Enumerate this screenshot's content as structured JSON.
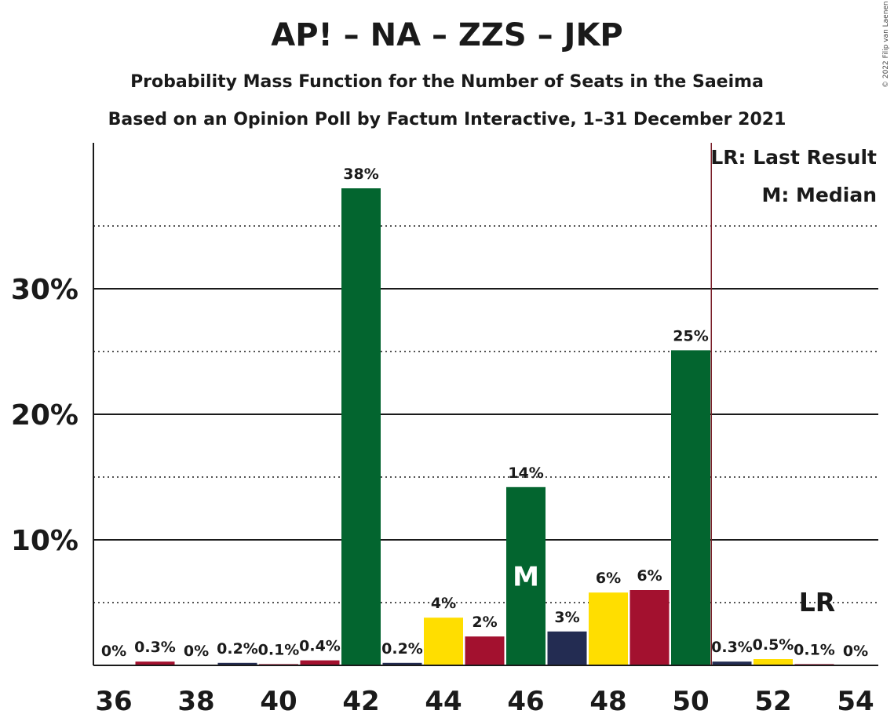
{
  "title": "AP! – NA – ZZS – JKP",
  "subtitle": "Probability Mass Function for the Number of Seats in the Saeima",
  "subtitle2": "Based on an Opinion Poll by Factum Interactive, 1–31 December 2021",
  "copyright": "© 2022 Filip van Laenen",
  "legend": {
    "last_result": "LR: Last Result",
    "median": "M: Median"
  },
  "chart_data": {
    "type": "bar",
    "title": "AP! – NA – ZZS – JKP",
    "xlabel": "",
    "ylabel": "",
    "ylim": [
      0,
      41.5
    ],
    "yticks": [
      10,
      20,
      30
    ],
    "ytick_labels": [
      "10%",
      "20%",
      "30%"
    ],
    "minor_gridlines": [
      5,
      15,
      25,
      35
    ],
    "grid": true,
    "legend_position": "top-right",
    "x_tick_labels": [
      "36",
      "38",
      "40",
      "42",
      "44",
      "46",
      "48",
      "50",
      "52",
      "54"
    ],
    "categories": [
      36,
      37,
      38,
      39,
      40,
      41,
      42,
      43,
      44,
      45,
      46,
      47,
      48,
      49,
      50,
      51,
      52,
      53,
      54
    ],
    "values": [
      0,
      0.3,
      0,
      0.2,
      0.1,
      0.4,
      38,
      0.2,
      3.8,
      2.3,
      14.2,
      2.7,
      5.8,
      6.0,
      25.1,
      0.3,
      0.5,
      0.1,
      0
    ],
    "labels": [
      "0%",
      "0.3%",
      "0%",
      "0.2%",
      "0.1%",
      "0.4%",
      "38%",
      "0.2%",
      "4%",
      "2%",
      "14%",
      "3%",
      "6%",
      "6%",
      "25%",
      "0.3%",
      "0.5%",
      "0.1%",
      "0%"
    ],
    "bar_colors": [
      "#a3112f",
      "#a3112f",
      "#232c52",
      "#232c52",
      "#a3112f",
      "#a3112f",
      "#03652f",
      "#232c52",
      "#ffde00",
      "#a3112f",
      "#03652f",
      "#232c52",
      "#ffde00",
      "#a3112f",
      "#03652f",
      "#232c52",
      "#ffde00",
      "#a3112f",
      "#03652f"
    ],
    "median_seat": 46,
    "median_label": "M",
    "last_result_seat": 50.5,
    "last_result_label": "LR",
    "last_result_color": "#7a1f2a"
  }
}
